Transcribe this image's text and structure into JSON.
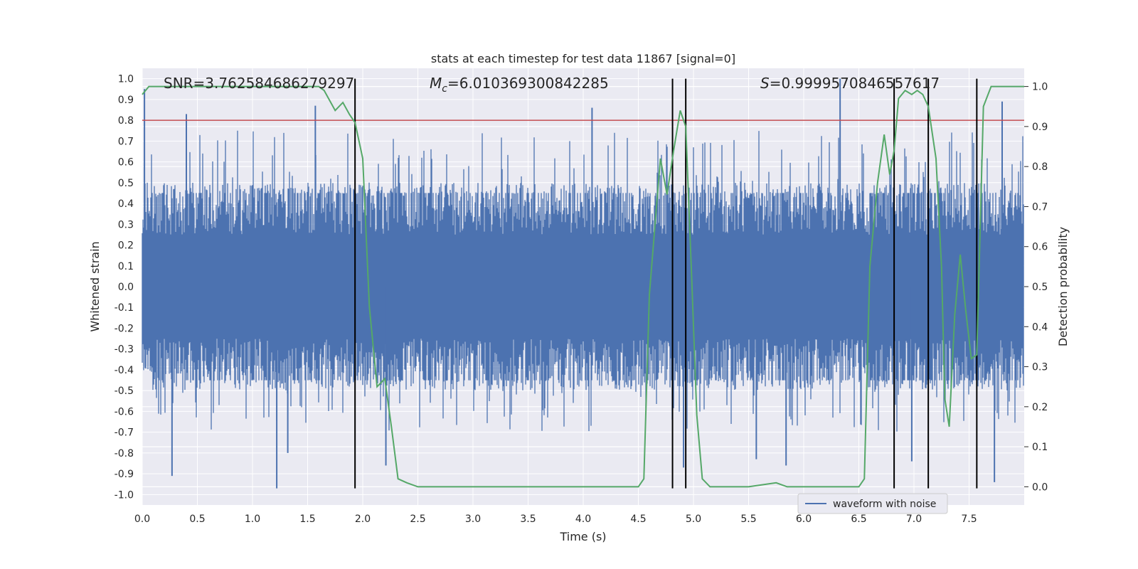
{
  "chart_data": {
    "type": "line",
    "title": "stats at each timestep for test data 11867 [signal=0]",
    "xlabel": "Time (s)",
    "ylabel": "Whitened strain",
    "ylabel_right": "Detection probability",
    "xlim": [
      0,
      8
    ],
    "ylim": [
      -1.05,
      1.05
    ],
    "ylim_right": [
      -0.0455,
      1.0455
    ],
    "xticks": [
      0.0,
      0.5,
      1.0,
      1.5,
      2.0,
      2.5,
      3.0,
      3.5,
      4.0,
      4.5,
      5.0,
      5.5,
      6.0,
      6.5,
      7.0,
      7.5
    ],
    "xtick_labels": [
      "0.0",
      "0.5",
      "1.0",
      "1.5",
      "2.0",
      "2.5",
      "3.0",
      "3.5",
      "4.0",
      "4.5",
      "5.0",
      "5.5",
      "6.0",
      "6.5",
      "7.0",
      "7.5"
    ],
    "yticks": [
      1.0,
      0.9,
      0.8,
      0.7,
      0.6,
      0.5,
      0.4,
      0.3,
      0.2,
      0.1,
      0.0,
      -0.1,
      -0.2,
      -0.3,
      -0.4,
      -0.5,
      -0.6,
      -0.7,
      -0.8,
      -0.9,
      -1.0
    ],
    "ytick_labels": [
      "1.0",
      "0.9",
      "0.8",
      "0.7",
      "0.6",
      "0.5",
      "0.4",
      "0.3",
      "0.2",
      "0.1",
      "0.0",
      "-0.1",
      "-0.2",
      "-0.3",
      "-0.4",
      "-0.5",
      "-0.6",
      "-0.7",
      "-0.8",
      "-0.9",
      "-1.0"
    ],
    "yticks_right": [
      1.0,
      0.9,
      0.8,
      0.7,
      0.6,
      0.5,
      0.4,
      0.3,
      0.2,
      0.1,
      0.0
    ],
    "ytick_labels_right": [
      "1.0",
      "0.9",
      "0.8",
      "0.7",
      "0.6",
      "0.5",
      "0.4",
      "0.3",
      "0.2",
      "0.1",
      "0.0"
    ],
    "annotations": {
      "snr": "SNR=3.762584686279297",
      "mc_symbol": "M",
      "mc_sub": "c",
      "mc_value": "=6.010369300842285",
      "s_symbol": "S",
      "s_value": "=0.9999570846557617"
    },
    "threshold": {
      "value": 0.8,
      "color": "#c44e52"
    },
    "vertical_lines": [
      1.93,
      4.81,
      4.93,
      6.82,
      7.13,
      7.57
    ],
    "waveform": {
      "name": "waveform with noise",
      "color": "#4c72b0",
      "samples": 4096,
      "peak_spikes": [
        [
          0.02,
          0.95
        ],
        [
          0.27,
          -0.91
        ],
        [
          0.4,
          0.83
        ],
        [
          1.22,
          -0.97
        ],
        [
          1.57,
          0.87
        ],
        [
          4.08,
          0.86
        ],
        [
          6.33,
          1.0
        ],
        [
          7.73,
          -0.94
        ],
        [
          7.8,
          0.89
        ],
        [
          1.32,
          -0.8
        ],
        [
          2.21,
          -0.86
        ],
        [
          4.91,
          -0.87
        ],
        [
          5.57,
          -0.83
        ],
        [
          5.84,
          -0.86
        ],
        [
          6.98,
          -0.84
        ]
      ]
    },
    "detection_probability": {
      "color": "#55a868",
      "x": [
        0.0,
        0.06,
        0.12,
        0.3,
        0.6,
        0.9,
        1.2,
        1.5,
        1.6,
        1.65,
        1.75,
        1.82,
        1.88,
        1.93,
        2.0,
        2.06,
        2.13,
        2.2,
        2.26,
        2.32,
        2.4,
        2.5,
        2.6,
        3.0,
        3.5,
        4.0,
        4.5,
        4.55,
        4.6,
        4.65,
        4.7,
        4.76,
        4.82,
        4.88,
        4.93,
        4.98,
        5.03,
        5.08,
        5.15,
        5.25,
        5.5,
        5.75,
        5.85,
        6.0,
        6.5,
        6.55,
        6.6,
        6.67,
        6.73,
        6.78,
        6.82,
        6.86,
        6.92,
        6.98,
        7.03,
        7.08,
        7.13,
        7.2,
        7.25,
        7.28,
        7.32,
        7.37,
        7.42,
        7.47,
        7.52,
        7.57,
        7.63,
        7.7,
        7.8,
        8.0
      ],
      "y": [
        0.98,
        1.0,
        1.0,
        1.0,
        1.0,
        1.0,
        1.0,
        1.0,
        1.0,
        0.99,
        0.94,
        0.96,
        0.93,
        0.91,
        0.82,
        0.45,
        0.25,
        0.27,
        0.15,
        0.02,
        0.01,
        0.0,
        0.0,
        0.0,
        0.0,
        0.0,
        0.0,
        0.02,
        0.48,
        0.65,
        0.82,
        0.73,
        0.84,
        0.94,
        0.9,
        0.55,
        0.18,
        0.02,
        0.0,
        0.0,
        0.0,
        0.01,
        0.0,
        0.0,
        0.0,
        0.02,
        0.55,
        0.76,
        0.88,
        0.78,
        0.84,
        0.97,
        0.99,
        0.98,
        0.99,
        0.98,
        0.95,
        0.82,
        0.55,
        0.22,
        0.15,
        0.43,
        0.58,
        0.44,
        0.32,
        0.33,
        0.95,
        1.0,
        1.0,
        1.0
      ]
    },
    "legend": {
      "entries": [
        "waveform with noise"
      ],
      "position": "lower-right"
    }
  }
}
